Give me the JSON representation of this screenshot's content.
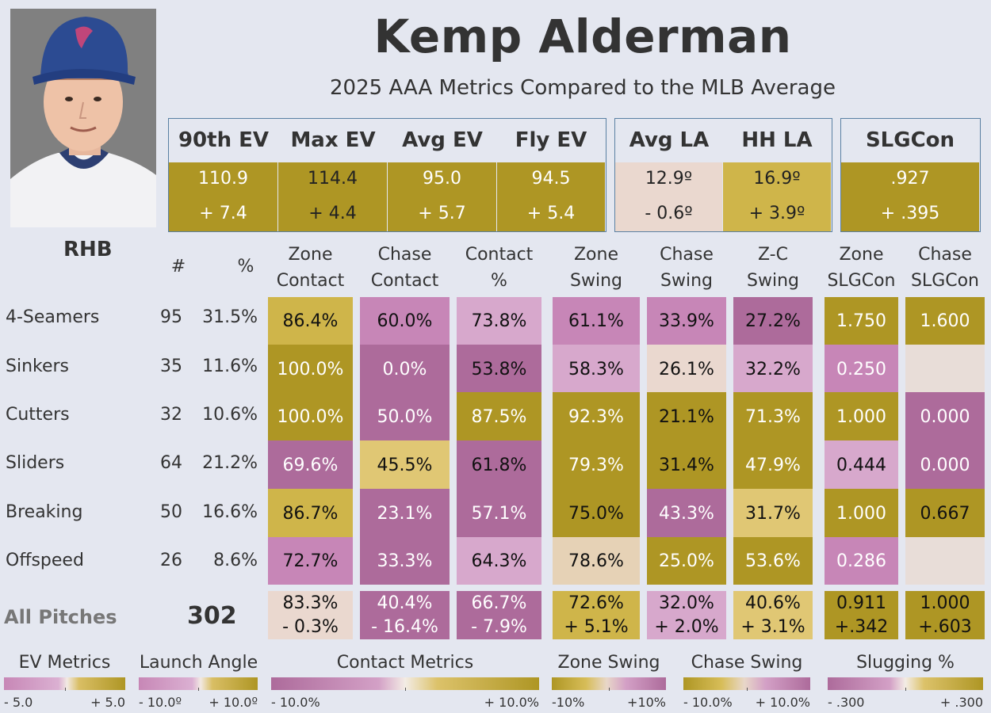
{
  "player": {
    "name": "Kemp Alderman",
    "subtitle": "2025 AAA Metrics Compared to the MLB Average",
    "hand": "RHB"
  },
  "colors": {
    "gold_dark": "#ae9624",
    "gold_mid": "#cfb54a",
    "gold_light": "#e0c774",
    "pink_dark": "#ad6b9b",
    "pink_mid": "#c786b7",
    "pink_light": "#d7a8cc",
    "neutral": "#ead8cf",
    "beige": "#e6d2b6",
    "blank": "#e8ddd8"
  },
  "ev_metrics": [
    {
      "label": "90th EV",
      "value": "110.9",
      "diff": "+ 7.4"
    },
    {
      "label": "Max EV",
      "value": "114.4",
      "diff": "+ 4.4"
    },
    {
      "label": "Avg EV",
      "value": "95.0",
      "diff": "+ 5.7"
    },
    {
      "label": "Fly EV",
      "value": "94.5",
      "diff": "+ 5.4"
    }
  ],
  "la_metrics": [
    {
      "label": "Avg LA",
      "value": "12.9º",
      "diff": "- 0.6º"
    },
    {
      "label": "HH LA",
      "value": "16.9º",
      "diff": "+ 3.9º"
    }
  ],
  "slg_metric": {
    "label": "SLGCon",
    "value": ".927",
    "diff": "+ .395"
  },
  "columns": {
    "count": "#",
    "pct": "%",
    "zone_contact": [
      "Zone",
      "Contact"
    ],
    "chase_contact": [
      "Chase",
      "Contact"
    ],
    "contact_pct": [
      "Contact",
      "%"
    ],
    "zone_swing": [
      "Zone",
      "Swing"
    ],
    "chase_swing": [
      "Chase",
      "Swing"
    ],
    "zc_swing": [
      "Z-C",
      "Swing"
    ],
    "zone_slgcon": [
      "Zone",
      "SLGCon"
    ],
    "chase_slgcon": [
      "Chase",
      "SLGCon"
    ]
  },
  "rows": [
    {
      "pitch": "4-Seamers",
      "count": "95",
      "pct": "31.5%",
      "values": [
        "86.4%",
        "60.0%",
        "73.8%",
        "61.1%",
        "33.9%",
        "27.2%",
        "1.750",
        "1.600"
      ]
    },
    {
      "pitch": "Sinkers",
      "count": "35",
      "pct": "11.6%",
      "values": [
        "100.0%",
        "0.0%",
        "53.8%",
        "58.3%",
        "26.1%",
        "32.2%",
        "0.250",
        ""
      ]
    },
    {
      "pitch": "Cutters",
      "count": "32",
      "pct": "10.6%",
      "values": [
        "100.0%",
        "50.0%",
        "87.5%",
        "92.3%",
        "21.1%",
        "71.3%",
        "1.000",
        "0.000"
      ]
    },
    {
      "pitch": "Sliders",
      "count": "64",
      "pct": "21.2%",
      "values": [
        "69.6%",
        "45.5%",
        "61.8%",
        "79.3%",
        "31.4%",
        "47.9%",
        "0.444",
        "0.000"
      ]
    },
    {
      "pitch": "Breaking",
      "count": "50",
      "pct": "16.6%",
      "values": [
        "86.7%",
        "23.1%",
        "57.1%",
        "75.0%",
        "43.3%",
        "31.7%",
        "1.000",
        "0.667"
      ]
    },
    {
      "pitch": "Offspeed",
      "count": "26",
      "pct": "8.6%",
      "values": [
        "72.7%",
        "33.3%",
        "64.3%",
        "78.6%",
        "25.0%",
        "53.6%",
        "0.286",
        ""
      ]
    }
  ],
  "totals": {
    "label": "All Pitches",
    "count": "302",
    "values": [
      [
        "83.3%",
        "- 0.3%"
      ],
      [
        "40.4%",
        "- 16.4%"
      ],
      [
        "66.7%",
        "- 7.9%"
      ],
      [
        "72.6%",
        "+ 5.1%"
      ],
      [
        "32.0%",
        "+ 2.0%"
      ],
      [
        "40.6%",
        "+ 3.1%"
      ],
      [
        "0.911",
        "+.342"
      ],
      [
        "1.000",
        "+.603"
      ]
    ]
  },
  "legend": [
    {
      "title": "EV Metrics",
      "min": "- 5.0",
      "max": "+ 5.0"
    },
    {
      "title": "Launch Angle",
      "min": "- 10.0º",
      "max": "+ 10.0º"
    },
    {
      "title": "Contact Metrics",
      "min": "- 10.0%",
      "max": "+ 10.0%"
    },
    {
      "title": "Zone Swing",
      "min": "-10%",
      "max": "+10%"
    },
    {
      "title": "Chase Swing",
      "min": "- 10.0%",
      "max": "+ 10.0%"
    },
    {
      "title": "Slugging %",
      "min": "- .300",
      "max": "+ .300"
    }
  ]
}
